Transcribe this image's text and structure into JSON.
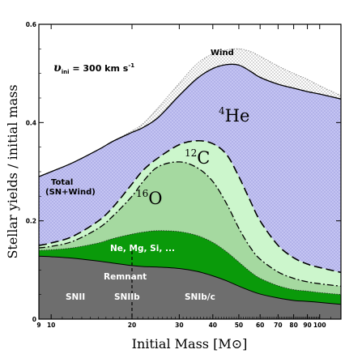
{
  "chart_data": {
    "type": "area",
    "xlabel": "Initial Mass [M⊙]",
    "ylabel": "Stellar yields / initial mass",
    "xscale": "log",
    "xlim": [
      9,
      120
    ],
    "ylim": [
      0,
      0.6
    ],
    "x_ticks": [
      9,
      10,
      20,
      30,
      40,
      50,
      60,
      70,
      80,
      90,
      100
    ],
    "y_ticks": [
      0,
      0.2,
      0.4,
      0.6
    ],
    "annotation": "v_ini = 300 km s⁻¹",
    "annotation_parts": {
      "v": "υ",
      "sub": "ini",
      "rest": " = 300 km s",
      "sup": "-1"
    },
    "divider_x": 20,
    "labels": {
      "wind": "Wind",
      "he4": "He",
      "he4_sup": "4",
      "c12": "C",
      "c12_sup": "12",
      "o16": "O",
      "o16_sup": "16",
      "total": "Total",
      "total_sub": "(SN+Wind)",
      "heavy": "Ne, Mg, Si, ...",
      "remnant": "Remnant",
      "snii": "SNII",
      "sniib": "SNIIb",
      "snibc": "SNIb/c"
    },
    "colors": {
      "remnant": "#6e6e6e",
      "heavy": "#0a9a0a",
      "oxygen": "#a5d9a0",
      "carbon": "#ccf6cc",
      "helium": "#c4c4f2",
      "wind_dots": "#777777"
    },
    "x": [
      9,
      10,
      12,
      15,
      17,
      20,
      22,
      25,
      30,
      35,
      40,
      45,
      50,
      55,
      60,
      70,
      80,
      90,
      100,
      120
    ],
    "series": [
      {
        "name": "Remnant",
        "values": [
          0.128,
          0.127,
          0.124,
          0.118,
          0.114,
          0.109,
          0.107,
          0.106,
          0.103,
          0.097,
          0.088,
          0.078,
          0.067,
          0.058,
          0.051,
          0.043,
          0.038,
          0.036,
          0.034,
          0.03
        ]
      },
      {
        "name": "Ne, Mg, Si, ...",
        "values": [
          0.14,
          0.141,
          0.145,
          0.155,
          0.164,
          0.173,
          0.177,
          0.18,
          0.178,
          0.17,
          0.156,
          0.137,
          0.116,
          0.097,
          0.083,
          0.068,
          0.06,
          0.057,
          0.054,
          0.05
        ]
      },
      {
        "name": "16O",
        "values": [
          0.145,
          0.148,
          0.158,
          0.185,
          0.21,
          0.25,
          0.28,
          0.31,
          0.32,
          0.308,
          0.28,
          0.235,
          0.185,
          0.147,
          0.122,
          0.096,
          0.083,
          0.076,
          0.072,
          0.067
        ]
      },
      {
        "name": "12C",
        "values": [
          0.15,
          0.155,
          0.168,
          0.2,
          0.228,
          0.275,
          0.303,
          0.328,
          0.355,
          0.363,
          0.357,
          0.335,
          0.29,
          0.242,
          0.2,
          0.15,
          0.125,
          0.112,
          0.105,
          0.095
        ]
      },
      {
        "name": "Total (SN+Wind)",
        "values": [
          0.29,
          0.3,
          0.318,
          0.345,
          0.362,
          0.38,
          0.39,
          0.41,
          0.455,
          0.49,
          0.51,
          0.518,
          0.517,
          0.505,
          0.492,
          0.478,
          0.47,
          0.463,
          0.458,
          0.448
        ]
      },
      {
        "name": "Wind",
        "values": [
          0.29,
          0.3,
          0.318,
          0.345,
          0.362,
          0.383,
          0.398,
          0.43,
          0.48,
          0.52,
          0.54,
          0.548,
          0.55,
          0.545,
          0.535,
          0.515,
          0.5,
          0.488,
          0.475,
          0.455
        ]
      }
    ]
  }
}
